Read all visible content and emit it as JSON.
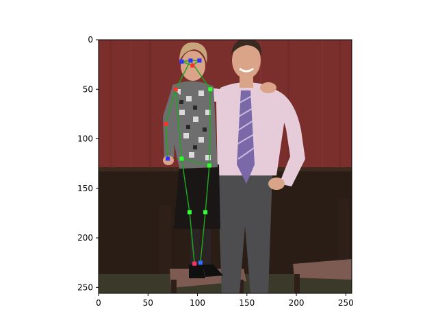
{
  "figure": {
    "x_ticks": [
      "0",
      "50",
      "100",
      "150",
      "200",
      "250"
    ],
    "y_ticks": [
      "0",
      "50",
      "100",
      "150",
      "200",
      "250"
    ],
    "x_tick_values": [
      0,
      50,
      100,
      150,
      200,
      250
    ],
    "y_tick_values": [
      0,
      50,
      100,
      150,
      200,
      250
    ],
    "xlim": [
      0,
      256
    ],
    "ylim": [
      256,
      0
    ]
  },
  "photo": {
    "subject": "two people standing in front of a red wall",
    "colors": {
      "wall": "#7a2f2c",
      "wainscot": "#2a1d16",
      "floor": "#3b3a2a",
      "shirt": "#e6cbd9",
      "pants": "#4d4d4f",
      "tie": "#7a68a8",
      "blouse": "#6e6e6e",
      "skirt": "#1a1616",
      "hair": "#c9a57c",
      "skin": "#d9a487",
      "chair": "#2e1f19",
      "seat": "#7d5a52"
    }
  },
  "pose_overlay": {
    "color": "#1fa51f",
    "points": [
      {
        "x": 84,
        "y": 22
      },
      {
        "x": 93,
        "y": 21
      },
      {
        "x": 102,
        "y": 21
      },
      {
        "x": 95,
        "y": 26
      },
      {
        "x": 78,
        "y": 50
      },
      {
        "x": 113,
        "y": 50
      },
      {
        "x": 68,
        "y": 85
      },
      {
        "x": 70,
        "y": 120
      },
      {
        "x": 84,
        "y": 120
      },
      {
        "x": 112,
        "y": 127
      },
      {
        "x": 92,
        "y": 174
      },
      {
        "x": 108,
        "y": 174
      },
      {
        "x": 97,
        "y": 226
      },
      {
        "x": 103,
        "y": 225
      }
    ],
    "edges": [
      [
        0,
        1
      ],
      [
        1,
        2
      ],
      [
        0,
        3
      ],
      [
        2,
        3
      ],
      [
        1,
        4
      ],
      [
        1,
        5
      ],
      [
        4,
        6
      ],
      [
        6,
        7
      ],
      [
        4,
        8
      ],
      [
        5,
        9
      ],
      [
        8,
        9
      ],
      [
        8,
        10
      ],
      [
        9,
        11
      ],
      [
        10,
        12
      ],
      [
        11,
        13
      ]
    ],
    "marker_colors": [
      "#3030ff",
      "#3030ff",
      "#3030ff",
      "#ff3030",
      "#ff3030",
      "#30ff30",
      "#ff3030",
      "#3030ff",
      "#30ff30",
      "#30ff30",
      "#30ff30",
      "#30ff30",
      "#ff3070",
      "#3070ff"
    ]
  }
}
